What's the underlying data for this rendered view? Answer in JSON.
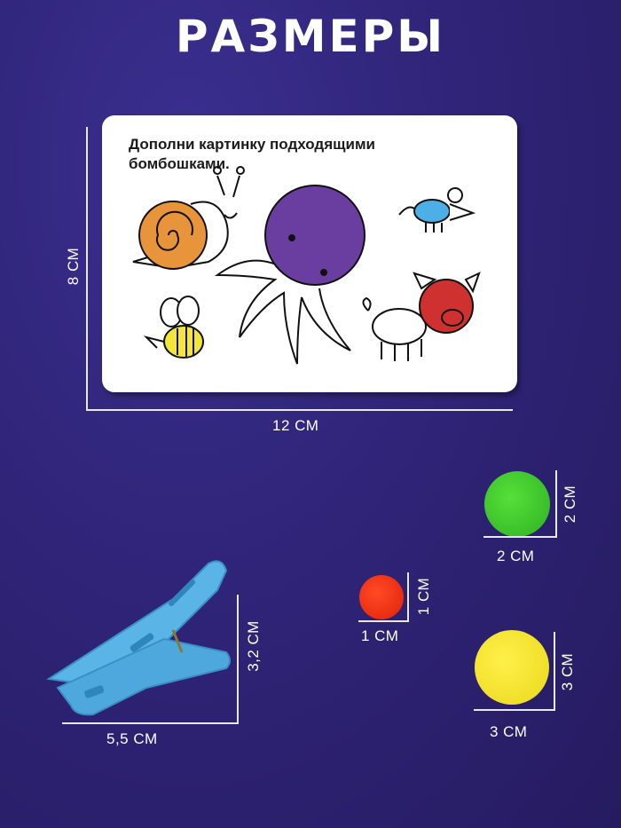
{
  "title": "РАЗМЕРЫ",
  "card": {
    "instruction": "Дополни картинку подходящими бомбошками.",
    "width_label": "12 СМ",
    "height_label": "8 СМ"
  },
  "clip": {
    "width_label": "5,5 СМ",
    "height_label": "3,2 СМ",
    "color": "#5ab4e6"
  },
  "pompoms": [
    {
      "color": "#3ccb2a",
      "width_label": "2 СМ",
      "height_label": "2 СМ"
    },
    {
      "color": "#ef2a12",
      "width_label": "1 СМ",
      "height_label": "1 СМ"
    },
    {
      "color": "#f2e21e",
      "width_label": "3 СМ",
      "height_label": "3 СМ"
    }
  ]
}
